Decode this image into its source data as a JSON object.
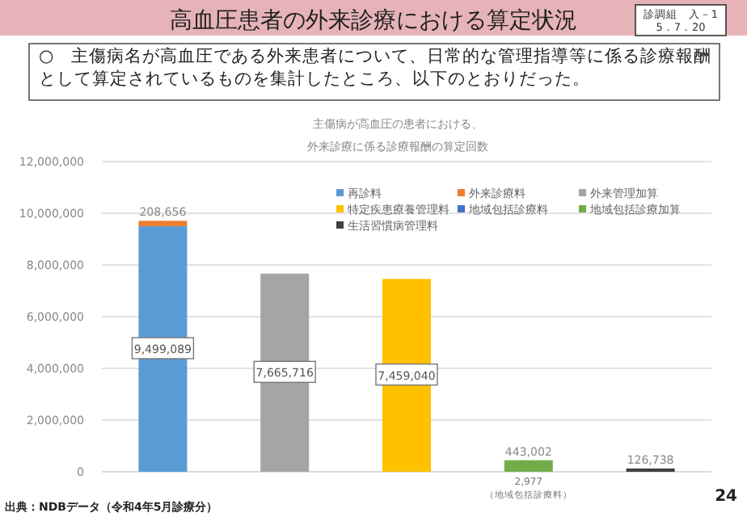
{
  "chart_data": {
    "type": "bar",
    "title": "高血圧患者の外来診療における算定状況",
    "subtitle": "○　主傷病名が高血圧である外来患者について、日常的な管理指導等に係る診療報酬として算定されているものを集計したところ、以下のとおりだった。",
    "annotations": [
      "主傷病が高血圧の患者における、",
      "外来診療に係る診療報酬の算定回数",
      "診調組　入－1\n5．7．20",
      "出典：NDBデータ（令和4年5月診療分）",
      "24"
    ],
    "categories": [
      null,
      null,
      null,
      null,
      null
    ],
    "stacked": true,
    "series": [
      {
        "name": "再診料",
        "color": "#5b9bd5",
        "values": [
          9499089,
          null,
          null,
          null,
          null
        ],
        "value_labels": [
          "9,499,089",
          null,
          null,
          null,
          null
        ]
      },
      {
        "name": "外来診療料",
        "color": "#ed7d31",
        "values": [
          208656,
          null,
          null,
          null,
          null
        ],
        "value_labels": [
          "208,656",
          null,
          null,
          null,
          null
        ]
      },
      {
        "name": "外来管理加算",
        "color": "#a5a5a5",
        "values": [
          null,
          7665716,
          null,
          null,
          null
        ],
        "value_labels": [
          null,
          "7,665,716",
          null,
          null,
          null
        ]
      },
      {
        "name": "特定疾患療養管理料",
        "color": "#ffc000",
        "values": [
          null,
          null,
          7459040,
          null,
          null
        ],
        "value_labels": [
          null,
          null,
          "7,459,040",
          null,
          null
        ]
      },
      {
        "name": "地域包括診療料",
        "color": "#4472c4",
        "values": [
          null,
          null,
          null,
          2977,
          null
        ],
        "value_labels": [
          null,
          null,
          null,
          "2,977\n（地域包括診療料）",
          null
        ]
      },
      {
        "name": "地域包括診療加算",
        "color": "#70ad47",
        "values": [
          null,
          null,
          null,
          443002,
          null
        ],
        "value_labels": [
          null,
          null,
          null,
          "443,002",
          null
        ]
      },
      {
        "name": "生活習慣病管理料",
        "color": "#404040",
        "values": [
          null,
          null,
          null,
          null,
          126738
        ],
        "value_labels": [
          null,
          null,
          null,
          null,
          "126,738"
        ]
      }
    ],
    "ylim": [
      0,
      12000000
    ],
    "yticks": [
      0,
      {
        "value": 2000000,
        "label": "2,000,000"
      },
      {
        "value": 4000000,
        "label": "4,000,000"
      },
      {
        "value": 6000000,
        "label": "6,000,000"
      },
      {
        "value": 8000000,
        "label": "8,000,000"
      },
      {
        "value": 10000000,
        "label": "10,000,000"
      },
      {
        "value": 12000000,
        "label": "12,000,000"
      }
    ],
    "grid": "y",
    "legend": "top right"
  }
}
